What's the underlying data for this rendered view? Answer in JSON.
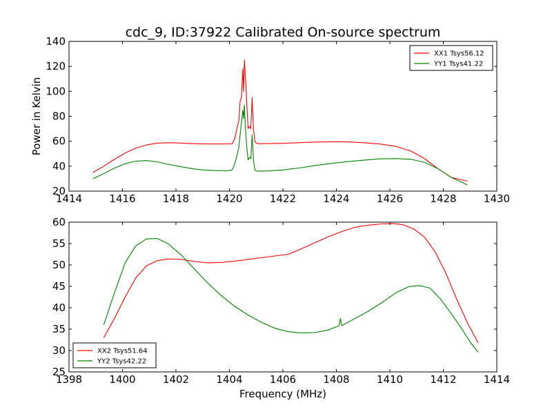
{
  "page": {
    "title": "cdc_9, ID:37922 Calibrated On-source spectrum"
  },
  "chart_data": [
    {
      "type": "line",
      "title": "cdc_9, ID:37922 Calibrated On-source spectrum",
      "xlabel": "",
      "ylabel": "Power in Kelvin",
      "xlim": [
        1414,
        1430
      ],
      "ylim": [
        20,
        140
      ],
      "xticks": [
        "1414",
        "1416",
        "1418",
        "1420",
        "1422",
        "1424",
        "1426",
        "1428",
        "1430"
      ],
      "yticks": [
        "20",
        "40",
        "60",
        "80",
        "100",
        "120",
        "140"
      ],
      "grid": false,
      "legend_position": "upper right",
      "series": [
        {
          "name": "XX1 Tsys56.12",
          "color": "#ff0000",
          "x": [
            1414.9,
            1415.3,
            1415.7,
            1416.1,
            1416.5,
            1416.9,
            1417.3,
            1417.7,
            1418.2,
            1418.6,
            1419.0,
            1419.5,
            1419.9,
            1420.1,
            1420.2,
            1420.3,
            1420.35,
            1420.4,
            1420.45,
            1420.5,
            1420.53,
            1420.56,
            1420.6,
            1420.65,
            1420.7,
            1420.75,
            1420.8,
            1420.85,
            1420.9,
            1420.95,
            1421.0,
            1421.1,
            1421.5,
            1422.0,
            1422.6,
            1423.2,
            1423.8,
            1424.4,
            1425.0,
            1425.6,
            1426.2,
            1426.8,
            1427.3,
            1427.8,
            1428.3,
            1428.9
          ],
          "y": [
            35,
            40,
            45.5,
            50.5,
            54.5,
            57,
            58.5,
            58.8,
            58.5,
            58.1,
            57.8,
            57.8,
            57.8,
            58,
            62,
            72,
            76,
            92,
            95,
            118,
            100,
            125,
            112,
            90,
            70,
            72,
            70,
            95,
            70,
            60,
            58.5,
            58,
            58.1,
            58.3,
            58.8,
            59.3,
            59.6,
            59.5,
            58.8,
            57.8,
            56,
            52,
            46,
            38,
            31,
            28
          ]
        },
        {
          "name": "YY1 Tsys41.22",
          "color": "#008000",
          "x": [
            1414.9,
            1415.3,
            1415.7,
            1416.1,
            1416.5,
            1416.9,
            1417.3,
            1417.7,
            1418.2,
            1418.6,
            1419.0,
            1419.5,
            1419.9,
            1420.1,
            1420.2,
            1420.3,
            1420.35,
            1420.4,
            1420.45,
            1420.5,
            1420.53,
            1420.56,
            1420.6,
            1420.65,
            1420.7,
            1420.75,
            1420.8,
            1420.85,
            1420.9,
            1420.95,
            1421.0,
            1421.1,
            1421.5,
            1422.0,
            1422.6,
            1423.2,
            1423.8,
            1424.4,
            1425.0,
            1425.6,
            1426.2,
            1426.8,
            1427.3,
            1427.8,
            1428.3,
            1428.9
          ],
          "y": [
            30,
            34,
            38.5,
            42,
            44,
            44.5,
            43.5,
            41.5,
            39.5,
            38,
            37,
            36.5,
            36.2,
            37,
            42,
            50,
            55,
            65,
            75,
            85,
            78,
            89,
            70,
            55,
            45,
            47,
            46,
            65,
            45,
            37,
            36.2,
            36.0,
            36.2,
            37,
            38.5,
            40.5,
            42.2,
            43.6,
            44.8,
            45.8,
            46.1,
            45.5,
            43,
            38,
            31,
            25
          ]
        }
      ]
    },
    {
      "type": "line",
      "title": "",
      "xlabel": "Frequency (MHz)",
      "ylabel": "",
      "xlim": [
        1398,
        1414
      ],
      "ylim": [
        25,
        60
      ],
      "xticks": [
        "1398",
        "1400",
        "1402",
        "1404",
        "1406",
        "1408",
        "1410",
        "1412",
        "1414"
      ],
      "yticks": [
        "25",
        "30",
        "35",
        "40",
        "45",
        "50",
        "55",
        "60"
      ],
      "grid": false,
      "legend_position": "lower left",
      "series": [
        {
          "name": "XX2 Tsys51.64",
          "color": "#ff0000",
          "x": [
            1399.3,
            1399.7,
            1400.1,
            1400.5,
            1400.9,
            1401.3,
            1401.7,
            1402.2,
            1402.7,
            1403.2,
            1403.7,
            1404.2,
            1404.7,
            1405.2,
            1405.7,
            1406.2,
            1406.7,
            1407.2,
            1407.7,
            1408.2,
            1408.7,
            1409.2,
            1409.7,
            1410.1,
            1410.5,
            1410.9,
            1411.3,
            1411.7,
            1412.1,
            1412.5,
            1412.9,
            1413.3
          ],
          "y": [
            33,
            37.5,
            42.5,
            47,
            49.8,
            51,
            51.4,
            51.3,
            50.8,
            50.5,
            50.6,
            50.9,
            51.3,
            51.7,
            52.1,
            52.5,
            53.8,
            55.2,
            56.6,
            57.8,
            58.8,
            59.3,
            59.6,
            59.7,
            59.4,
            58.4,
            56.5,
            53,
            48,
            42,
            36.5,
            31.8
          ]
        },
        {
          "name": "YY2 Tsys42.22",
          "color": "#008000",
          "x": [
            1399.3,
            1399.7,
            1400.1,
            1400.5,
            1400.9,
            1401.3,
            1401.7,
            1402.2,
            1402.7,
            1403.2,
            1403.7,
            1404.2,
            1404.7,
            1405.2,
            1405.7,
            1406.2,
            1406.7,
            1407.2,
            1407.7,
            1408.1,
            1408.15,
            1408.2,
            1408.25,
            1408.7,
            1409.2,
            1409.7,
            1410.2,
            1410.7,
            1411.1,
            1411.5,
            1411.9,
            1412.3,
            1412.7,
            1413.0,
            1413.3
          ],
          "y": [
            36,
            43.5,
            50.5,
            54.5,
            56.1,
            56.2,
            55,
            52.3,
            49,
            45.7,
            42.8,
            40.3,
            38.3,
            36.6,
            35.2,
            34.4,
            34.1,
            34.2,
            34.8,
            35.8,
            37.5,
            35.8,
            36,
            37.5,
            39.2,
            41.2,
            43.4,
            44.9,
            45.2,
            44.6,
            42,
            38.6,
            35,
            32,
            29.6
          ]
        }
      ]
    }
  ]
}
